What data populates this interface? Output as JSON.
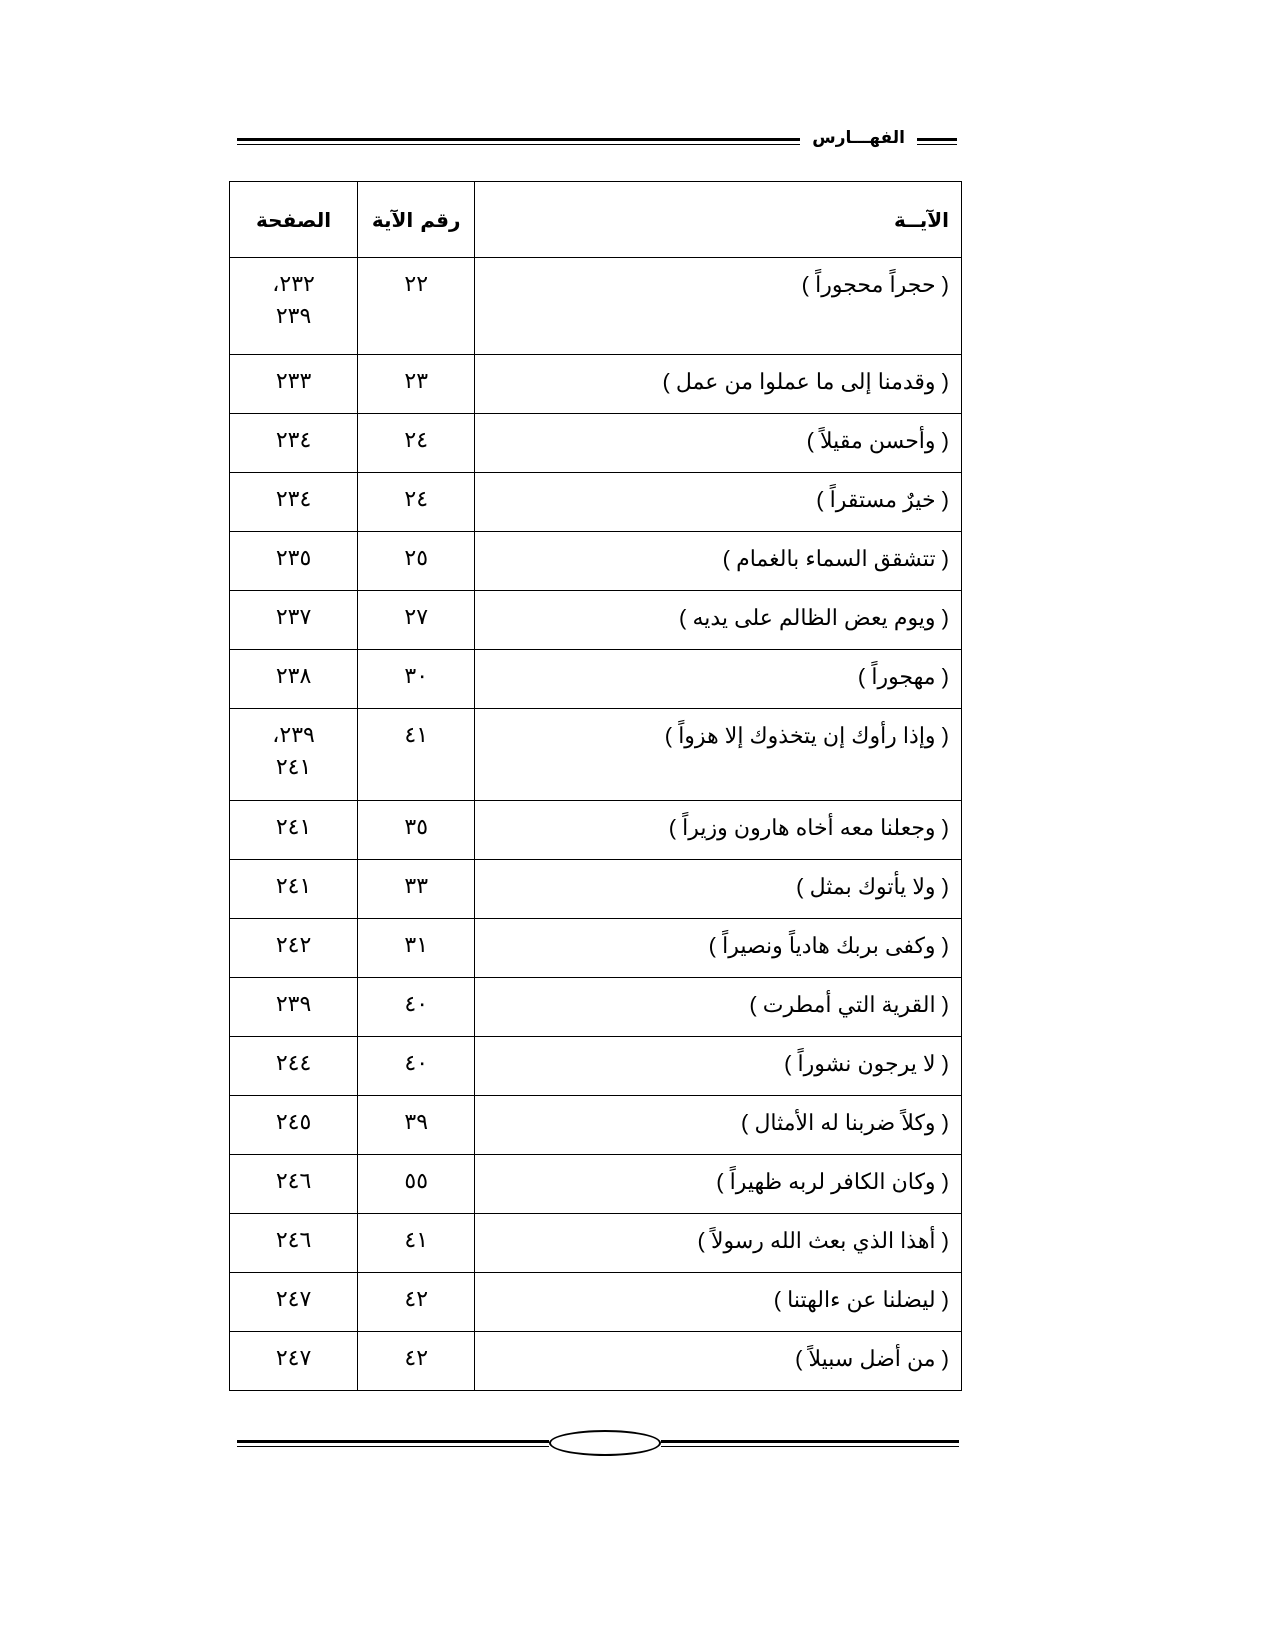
{
  "header": {
    "title": "الفهـــارس"
  },
  "table": {
    "columns": {
      "text": "الآيــة",
      "num": "رقم الآية",
      "page": "الصفحة"
    },
    "rows": [
      {
        "text": "( حجراً محجوراً )",
        "num": "٢٢",
        "page": "٢٣٢،\n٢٣٩"
      },
      {
        "text": "( وقدمنا إلى ما عملوا من عمل )",
        "num": "٢٣",
        "page": "٢٣٣"
      },
      {
        "text": "( وأحسن مقيلاً )",
        "num": "٢٤",
        "page": "٢٣٤"
      },
      {
        "text": "( خيرٌ مستقراً )",
        "num": "٢٤",
        "page": "٢٣٤"
      },
      {
        "text": "( تتشقق السماء بالغمام )",
        "num": "٢٥",
        "page": "٢٣٥"
      },
      {
        "text": "( ويوم يعض الظالم على يديه )",
        "num": "٢٧",
        "page": "٢٣٧"
      },
      {
        "text": "( مهجوراً )",
        "num": "٣٠",
        "page": "٢٣٨"
      },
      {
        "text": "( وإذا رأوك إن يتخذوك إلا هزواً )",
        "num": "٤١",
        "page": "٢٣٩،\n٢٤١"
      },
      {
        "text": "( وجعلنا معه أخاه هارون وزيراً )",
        "num": "٣٥",
        "page": "٢٤١"
      },
      {
        "text": "( ولا يأتوك بمثل )",
        "num": "٣٣",
        "page": "٢٤١"
      },
      {
        "text": "( وكفى بربك هادياً ونصيراً )",
        "num": "٣١",
        "page": "٢٤٢"
      },
      {
        "text": "( القرية التي أمطرت )",
        "num": "٤٠",
        "page": "٢٣٩"
      },
      {
        "text": "( لا يرجون نشوراً )",
        "num": "٤٠",
        "page": "٢٤٤"
      },
      {
        "text": "( وكلاً ضربنا له الأمثال )",
        "num": "٣٩",
        "page": "٢٤٥"
      },
      {
        "text": "( وكان الكافر لربه ظهيراً )",
        "num": "٥٥",
        "page": "٢٤٦"
      },
      {
        "text": "( أهذا الذي بعث الله رسولاً )",
        "num": "٤١",
        "page": "٢٤٦"
      },
      {
        "text": "( ليضلنا عن ءالهتنا )",
        "num": "٤٢",
        "page": "٢٤٧"
      },
      {
        "text": "( من أضل سبيلاً )",
        "num": "٤٢",
        "page": "٢٤٧"
      }
    ]
  }
}
